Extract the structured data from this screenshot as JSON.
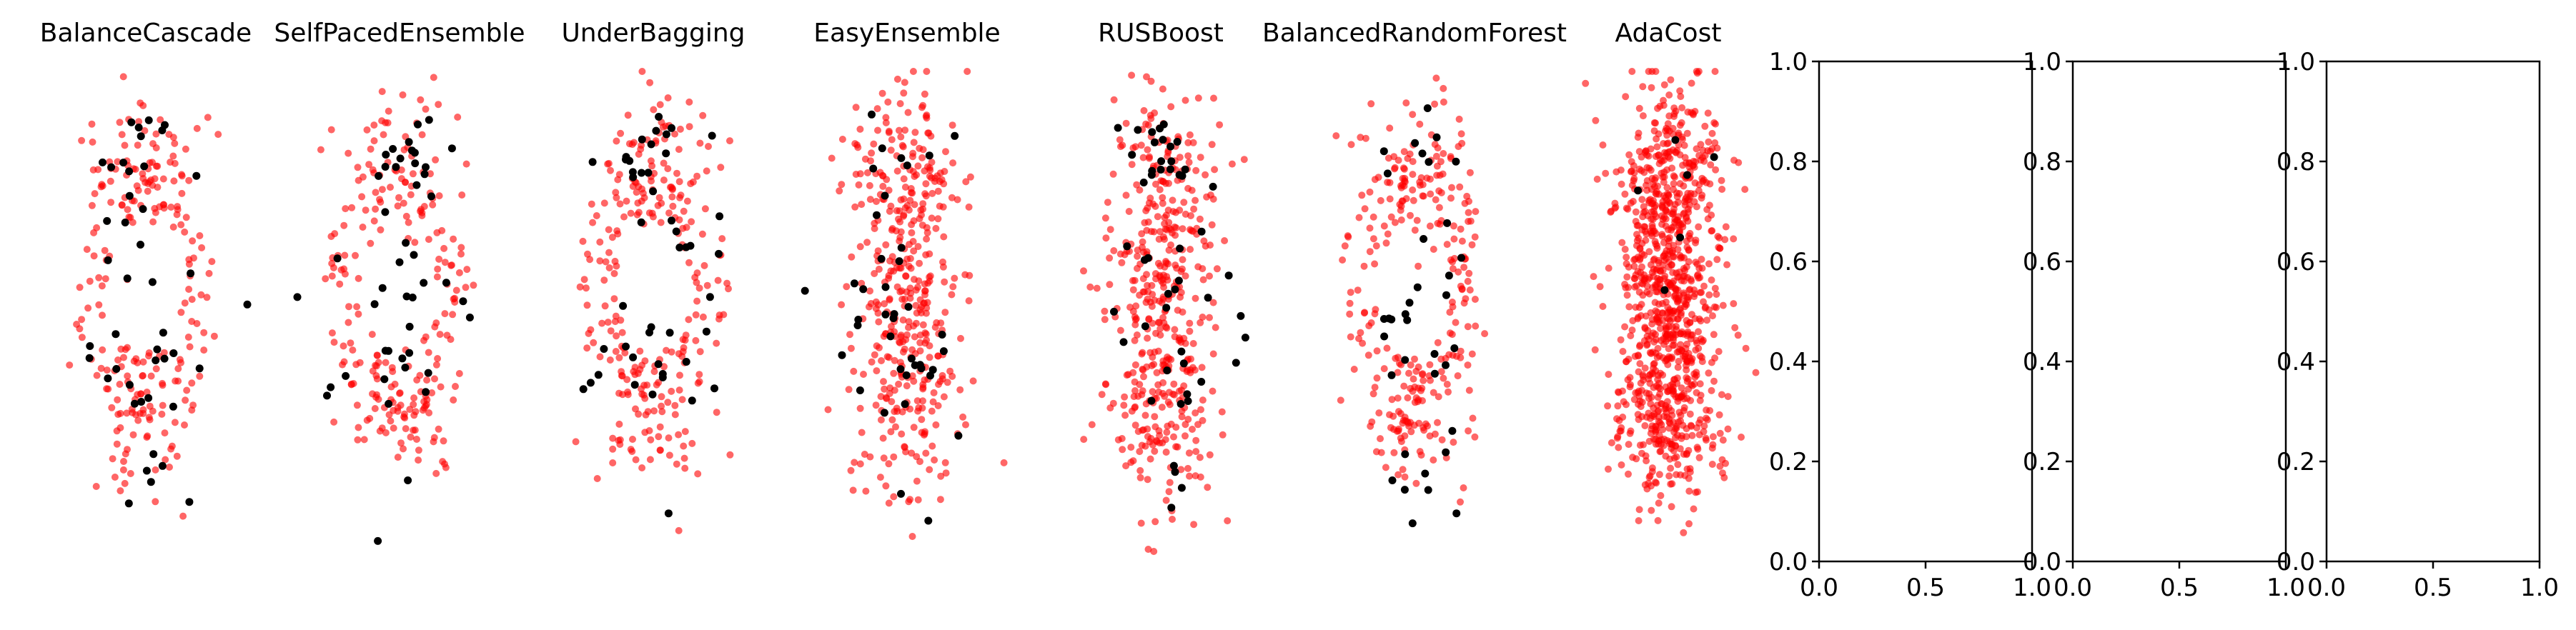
{
  "chart_data": [
    {
      "type": "scatter",
      "title": "BalanceCascade",
      "axis": "off",
      "series": [
        {
          "color": "#ff0000",
          "alpha": 0.6,
          "count": 230
        },
        {
          "color": "#000000",
          "alpha": 1.0,
          "count": 44
        }
      ]
    },
    {
      "type": "scatter",
      "title": "SelfPacedEnsemble",
      "axis": "off",
      "series": [
        {
          "color": "#ff0000",
          "alpha": 0.6,
          "count": 230
        },
        {
          "color": "#000000",
          "alpha": 1.0,
          "count": 46
        }
      ]
    },
    {
      "type": "scatter",
      "title": "UnderBagging",
      "axis": "off",
      "series": [
        {
          "color": "#ff0000",
          "alpha": 0.6,
          "count": 260
        },
        {
          "color": "#000000",
          "alpha": 1.0,
          "count": 46
        }
      ]
    },
    {
      "type": "scatter",
      "title": "EasyEnsemble",
      "axis": "off",
      "series": [
        {
          "color": "#ff0000",
          "alpha": 0.6,
          "count": 420
        },
        {
          "color": "#000000",
          "alpha": 1.0,
          "count": 40
        }
      ]
    },
    {
      "type": "scatter",
      "title": "RUSBoost",
      "axis": "off",
      "series": [
        {
          "color": "#ff0000",
          "alpha": 0.6,
          "count": 440
        },
        {
          "color": "#000000",
          "alpha": 1.0,
          "count": 50
        }
      ]
    },
    {
      "type": "scatter",
      "title": "BalancedRandomForest",
      "axis": "off",
      "series": [
        {
          "color": "#ff0000",
          "alpha": 0.6,
          "count": 280
        },
        {
          "color": "#000000",
          "alpha": 1.0,
          "count": 36
        }
      ]
    },
    {
      "type": "scatter",
      "title": "AdaCost",
      "axis": "off",
      "series": [
        {
          "color": "#ff0000",
          "alpha": 0.6,
          "count": 1000
        },
        {
          "color": "#000000",
          "alpha": 1.0,
          "count": 6
        }
      ]
    },
    {
      "type": "scatter",
      "title": "",
      "axis": "on",
      "series": [],
      "xlim": [
        0.0,
        1.0
      ],
      "ylim": [
        0.0,
        1.0
      ],
      "xticks": [
        "0.0",
        "0.5",
        "1.0"
      ],
      "yticks": [
        "0.0",
        "0.2",
        "0.4",
        "0.6",
        "0.8",
        "1.0"
      ]
    },
    {
      "type": "scatter",
      "title": "",
      "axis": "on",
      "series": [],
      "xlim": [
        0.0,
        1.0
      ],
      "ylim": [
        0.0,
        1.0
      ],
      "xticks": [
        "0.0",
        "0.5",
        "1.0"
      ],
      "yticks": [
        "0.0",
        "0.2",
        "0.4",
        "0.6",
        "0.8",
        "1.0"
      ]
    },
    {
      "type": "scatter",
      "title": "",
      "axis": "on",
      "series": [],
      "xlim": [
        0.0,
        1.0
      ],
      "ylim": [
        0.0,
        1.0
      ],
      "xticks": [
        "0.0",
        "0.5",
        "1.0"
      ],
      "yticks": [
        "0.0",
        "0.2",
        "0.4",
        "0.6",
        "0.8",
        "1.0"
      ]
    }
  ]
}
